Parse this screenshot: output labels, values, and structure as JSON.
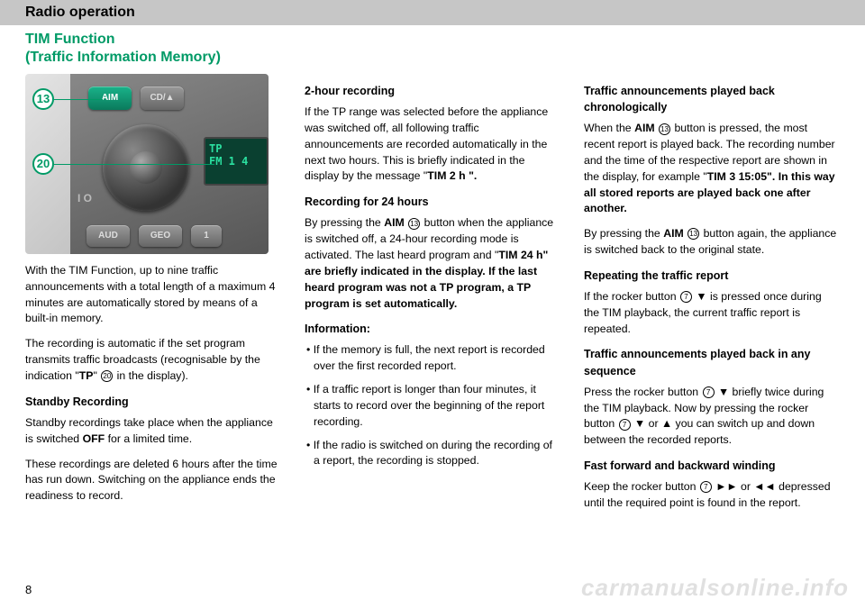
{
  "header": {
    "title": "Radio operation"
  },
  "subtitle": {
    "line1": "TIM Function",
    "line2": "(Traffic Information Memory)"
  },
  "diagram": {
    "callout13": "13",
    "callout20": "20",
    "btn_aim": "AIM",
    "btn_cd": "CD/▲",
    "btn_aud": "AUD",
    "btn_geo": "GEO",
    "btn_one": "1",
    "io": "I O",
    "display_line1": "TP",
    "display_line2": "FM 1  4"
  },
  "col1": {
    "p1": "With the TIM Function, up to nine traffic announcements with a total length of a maximum 4 minutes are automatically stored by means of a built-in memory.",
    "p2a": "The recording is automatic if the set program transmits traffic broadcasts (recognisable by the indication \"",
    "p2b": "TP",
    "p2c": "\" ",
    "p2ref": "20",
    "p2d": " in the display).",
    "h1": "Standby Recording",
    "p3a": "Standby recordings take place when the appliance is switched ",
    "p3b": "OFF",
    "p3c": " for a limited time.",
    "p4": "These recordings are deleted 6 hours after the time has run down. Switching on the appliance ends the readiness to record."
  },
  "col2": {
    "h1": "2-hour recording",
    "p1a": "If the TP range was selected before the appliance was switched off, all following traffic announcements are recorded automatically in the next two hours. This is briefly indicated in the display by the message \"",
    "p1sc": "TIM",
    "p1b": " 2 h \".",
    "h2": "Recording for 24 hours",
    "p2a": "By pressing the ",
    "p2b": "AIM",
    "p2ref": "13",
    "p2c": " button when the appliance is switched off, a 24-hour recording mode is activated. The last heard program and \"",
    "p2sc": "TIM",
    "p2d": " 24 h\" are briefly indicated in the display. If the last heard program was not a TP program, a TP program is set automatically.",
    "h3": "Information:",
    "li1": "If the memory is full, the next report is recorded over the first recorded report.",
    "li2": "If a traffic report is longer than four minutes, it starts to record over the beginning of the report recording.",
    "li3": "If the radio is switched on during the recording of a report, the recording is stopped."
  },
  "col3": {
    "h1": "Traffic announcements played back chronologically",
    "p1a": "When the ",
    "p1b": "AIM",
    "p1ref": "13",
    "p1c": " button is pressed, the most recent report is played back. The recording number and the time of the respective report are shown in the display, for example \"",
    "p1sc": "TIM",
    "p1d": " 3 15:05\". In this way all stored reports are played back one after another.",
    "p2a": "By pressing the ",
    "p2b": "AIM",
    "p2ref": "13",
    "p2c": " button again, the appliance is switched back to the original state.",
    "h2": "Repeating the traffic report",
    "p3a": "If the rocker button ",
    "p3ref": "7",
    "p3b": " ▼ is pressed once during the TIM playback, the current traffic report is repeated.",
    "h3": "Traffic announcements played back in any sequence",
    "p4a": "Press the rocker button ",
    "p4ref1": "7",
    "p4b": " ▼ briefly twice during the TIM playback. Now by pressing the rocker button ",
    "p4ref2": "7",
    "p4c": " ▼ or ▲ you can switch up and down between the recorded reports.",
    "h4": "Fast forward and backward winding",
    "p5a": "Keep the rocker button ",
    "p5ref": "7",
    "p5b": " ►► or ◄◄ depressed until the required point is found in the report."
  },
  "page_number": "8",
  "watermark": "carmanualsonline.info"
}
